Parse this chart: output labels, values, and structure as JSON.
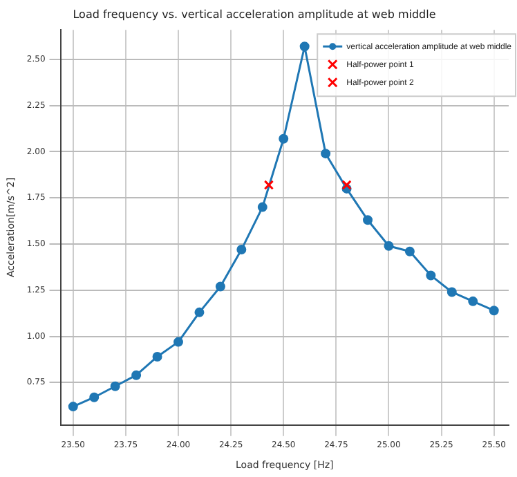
{
  "chart_data": {
    "type": "line",
    "title": "Load frequency vs. vertical acceleration amplitude at web middle",
    "xlabel": "Load frequency [Hz]",
    "ylabel": "Acceleration[m/s^2]",
    "x": [
      23.5,
      23.6,
      23.7,
      23.8,
      23.9,
      24.0,
      24.1,
      24.2,
      24.3,
      24.4,
      24.5,
      24.6,
      24.7,
      24.8,
      24.9,
      25.0,
      25.1,
      25.2,
      25.3,
      25.4,
      25.5
    ],
    "series": [
      {
        "name": "vertical acceleration amplitude at web middle",
        "type": "line",
        "color": "#1f77b4",
        "marker": "circle",
        "values": [
          0.62,
          0.67,
          0.73,
          0.79,
          0.89,
          0.97,
          1.13,
          1.27,
          1.47,
          1.7,
          2.07,
          2.57,
          1.99,
          1.8,
          1.63,
          1.49,
          1.46,
          1.33,
          1.24,
          1.19,
          1.14
        ]
      },
      {
        "name": "Half-power point 1",
        "type": "scatter",
        "color": "#ff0000",
        "marker": "cross",
        "x": [
          24.43
        ],
        "values": [
          1.82
        ]
      },
      {
        "name": "Half-power point 2",
        "type": "scatter",
        "color": "#ff0000",
        "marker": "cross",
        "x": [
          24.8
        ],
        "values": [
          1.82
        ]
      }
    ],
    "xlim": [
      23.44,
      25.57
    ],
    "ylim": [
      0.52,
      2.66
    ],
    "xticks": [
      {
        "value": 23.5,
        "label": "23.50"
      },
      {
        "value": 23.75,
        "label": "23.75"
      },
      {
        "value": 24,
        "label": "24.00"
      },
      {
        "value": 24.25,
        "label": "24.25"
      },
      {
        "value": 24.5,
        "label": "24.50"
      },
      {
        "value": 24.75,
        "label": "24.75"
      },
      {
        "value": 25,
        "label": "25.00"
      },
      {
        "value": 25.25,
        "label": "25.25"
      },
      {
        "value": 25.5,
        "label": "25.50"
      }
    ],
    "yticks": [
      {
        "value": 0.75,
        "label": "0.75"
      },
      {
        "value": 1,
        "label": "1.00"
      },
      {
        "value": 1.25,
        "label": "1.25"
      },
      {
        "value": 1.5,
        "label": "1.50"
      },
      {
        "value": 1.75,
        "label": "1.75"
      },
      {
        "value": 2,
        "label": "2.00"
      },
      {
        "value": 2.25,
        "label": "2.25"
      },
      {
        "value": 2.5,
        "label": "2.50"
      }
    ],
    "grid": true,
    "legend": "top right"
  }
}
